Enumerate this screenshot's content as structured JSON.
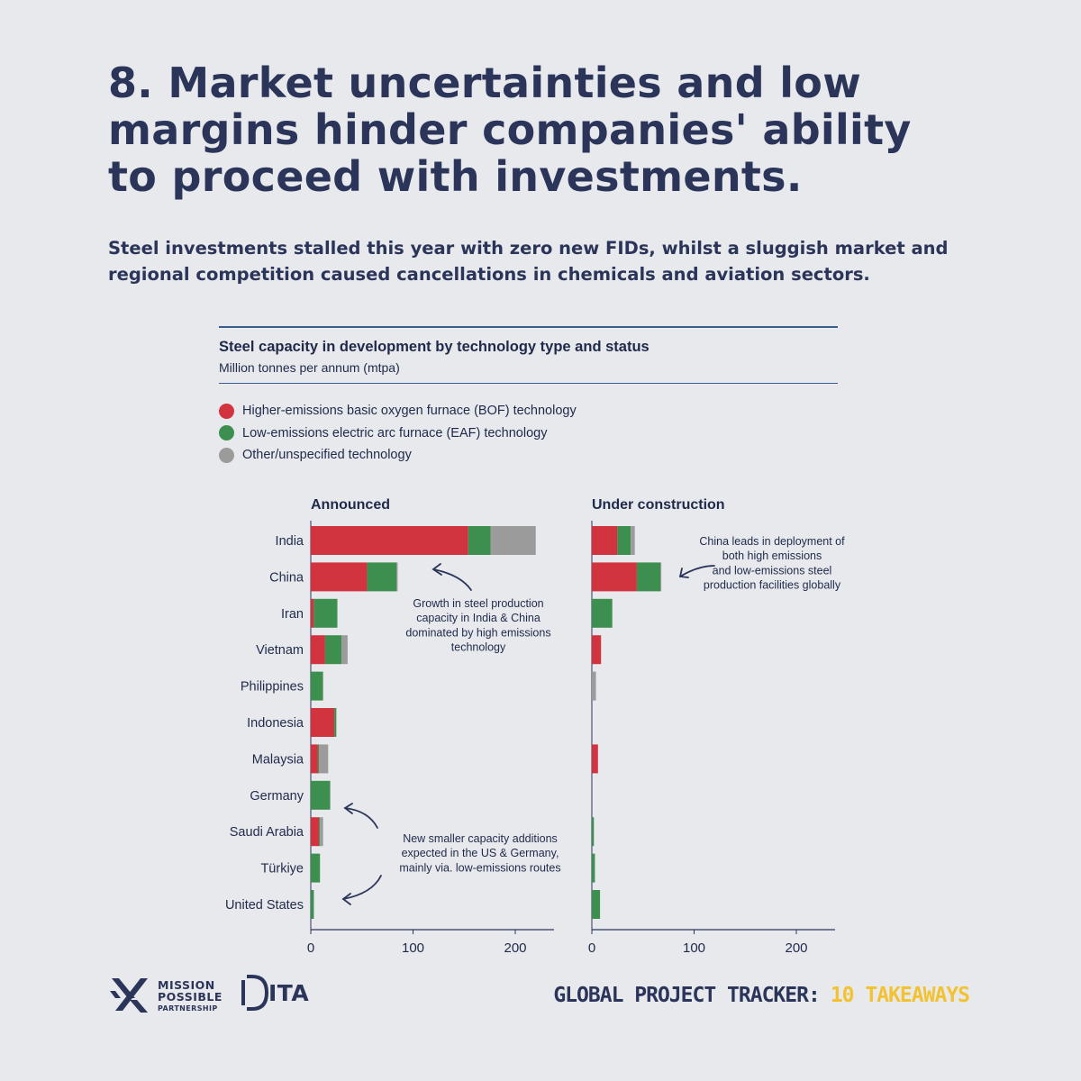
{
  "headline": "8. Market uncertainties and low margins hinder companies' ability to proceed with investments.",
  "subhead": "Steel investments stalled this year with zero new FIDs, whilst a sluggish market and regional competition caused cancellations in chemicals and aviation sectors.",
  "footer": {
    "mpp_line1": "MISSION",
    "mpp_line2": "POSSIBLE",
    "mpp_line3": "PARTNERSHIP",
    "ita_logo_text": "ITA",
    "tracker_label": "GLOBAL PROJECT TRACKER:",
    "tracker_suffix": "10 TAKEAWAYS"
  },
  "colors": {
    "bof": "#d1343f",
    "eaf": "#3d8f4f",
    "other": "#9b9b9b",
    "navy": "#2b3559",
    "accent_yellow": "#f2c230"
  },
  "chart_data": {
    "type": "bar",
    "orientation": "horizontal",
    "stacked": true,
    "title": "Steel capacity in development by technology type and status",
    "subtitle": "Million tonnes per annum (mtpa)",
    "legend": [
      {
        "key": "bof",
        "label": "Higher-emissions basic oxygen furnace (BOF) technology"
      },
      {
        "key": "eaf",
        "label": "Low-emissions electric arc furnace (EAF) technology"
      },
      {
        "key": "other",
        "label": "Other/unspecified technology"
      }
    ],
    "legend_position": "top-left",
    "categories": [
      "India",
      "China",
      "Iran",
      "Vietnam",
      "Philippines",
      "Indonesia",
      "Malaysia",
      "Germany",
      "Saudi Arabia",
      "Türkiye",
      "United States"
    ],
    "xlim": [
      0,
      240
    ],
    "xticks": [
      0,
      100,
      200
    ],
    "grid": false,
    "panels": [
      {
        "title": "Announced",
        "series": [
          {
            "name": "Higher-emissions basic oxygen furnace (BOF) technology",
            "key": "bof",
            "values": [
              154,
              55,
              3,
              14,
              0,
              23,
              7,
              0,
              8,
              0,
              0
            ]
          },
          {
            "name": "Low-emissions electric arc furnace (EAF) technology",
            "key": "eaf",
            "values": [
              22,
              29,
              23,
              16,
              12,
              2,
              1,
              19,
              1,
              9,
              3
            ]
          },
          {
            "name": "Other/unspecified technology",
            "key": "other",
            "values": [
              44,
              1,
              0,
              6,
              0,
              0,
              9,
              0,
              3,
              0,
              0
            ]
          }
        ],
        "annotations": [
          "Growth in steel production capacity in India & China dominated by high emissions technology",
          "New smaller capacity additions expected in the US & Germany, mainly via. low-emissions routes"
        ]
      },
      {
        "title": "Under construction",
        "series": [
          {
            "name": "Higher-emissions basic oxygen furnace (BOF) technology",
            "key": "bof",
            "values": [
              25,
              44,
              0,
              9,
              0,
              0,
              6,
              0,
              0,
              0,
              0
            ]
          },
          {
            "name": "Low-emissions electric arc furnace (EAF) technology",
            "key": "eaf",
            "values": [
              13,
              23,
              20,
              0,
              0,
              0,
              0,
              0,
              2,
              3,
              8
            ]
          },
          {
            "name": "Other/unspecified technology",
            "key": "other",
            "values": [
              4,
              1,
              0,
              0,
              4,
              0,
              0,
              0,
              0,
              0,
              0
            ]
          }
        ],
        "annotations": [
          "China leads in deployment of both high emissions and low-emissions steel production facilities globally"
        ]
      }
    ]
  }
}
